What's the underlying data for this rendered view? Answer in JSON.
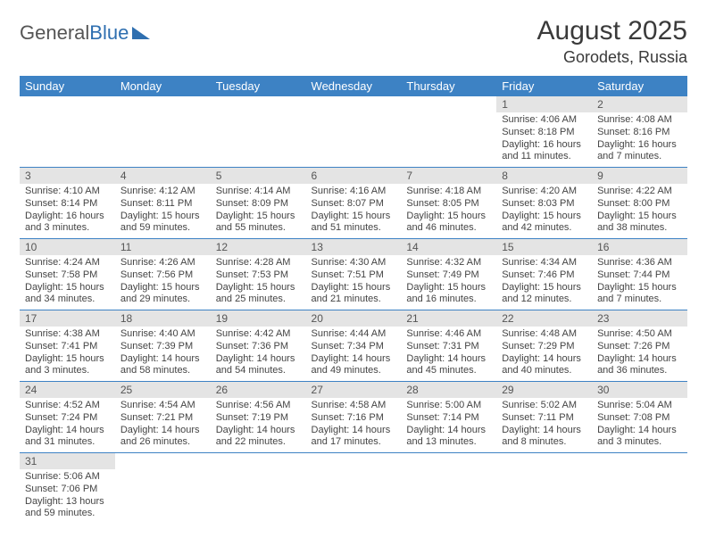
{
  "brand": {
    "part1": "General",
    "part2": "Blue"
  },
  "title": "August 2025",
  "location": "Gorodets, Russia",
  "colors": {
    "header_bg": "#3d82c4",
    "header_fg": "#ffffff",
    "daynum_bg": "#e4e4e4",
    "rule": "#3d82c4",
    "text": "#3a3a3a",
    "brand_blue": "#2f6fb0"
  },
  "weekdays": [
    "Sunday",
    "Monday",
    "Tuesday",
    "Wednesday",
    "Thursday",
    "Friday",
    "Saturday"
  ],
  "weeks": [
    [
      null,
      null,
      null,
      null,
      null,
      {
        "n": "1",
        "sr": "Sunrise: 4:06 AM",
        "ss": "Sunset: 8:18 PM",
        "dl": "Daylight: 16 hours and 11 minutes."
      },
      {
        "n": "2",
        "sr": "Sunrise: 4:08 AM",
        "ss": "Sunset: 8:16 PM",
        "dl": "Daylight: 16 hours and 7 minutes."
      }
    ],
    [
      {
        "n": "3",
        "sr": "Sunrise: 4:10 AM",
        "ss": "Sunset: 8:14 PM",
        "dl": "Daylight: 16 hours and 3 minutes."
      },
      {
        "n": "4",
        "sr": "Sunrise: 4:12 AM",
        "ss": "Sunset: 8:11 PM",
        "dl": "Daylight: 15 hours and 59 minutes."
      },
      {
        "n": "5",
        "sr": "Sunrise: 4:14 AM",
        "ss": "Sunset: 8:09 PM",
        "dl": "Daylight: 15 hours and 55 minutes."
      },
      {
        "n": "6",
        "sr": "Sunrise: 4:16 AM",
        "ss": "Sunset: 8:07 PM",
        "dl": "Daylight: 15 hours and 51 minutes."
      },
      {
        "n": "7",
        "sr": "Sunrise: 4:18 AM",
        "ss": "Sunset: 8:05 PM",
        "dl": "Daylight: 15 hours and 46 minutes."
      },
      {
        "n": "8",
        "sr": "Sunrise: 4:20 AM",
        "ss": "Sunset: 8:03 PM",
        "dl": "Daylight: 15 hours and 42 minutes."
      },
      {
        "n": "9",
        "sr": "Sunrise: 4:22 AM",
        "ss": "Sunset: 8:00 PM",
        "dl": "Daylight: 15 hours and 38 minutes."
      }
    ],
    [
      {
        "n": "10",
        "sr": "Sunrise: 4:24 AM",
        "ss": "Sunset: 7:58 PM",
        "dl": "Daylight: 15 hours and 34 minutes."
      },
      {
        "n": "11",
        "sr": "Sunrise: 4:26 AM",
        "ss": "Sunset: 7:56 PM",
        "dl": "Daylight: 15 hours and 29 minutes."
      },
      {
        "n": "12",
        "sr": "Sunrise: 4:28 AM",
        "ss": "Sunset: 7:53 PM",
        "dl": "Daylight: 15 hours and 25 minutes."
      },
      {
        "n": "13",
        "sr": "Sunrise: 4:30 AM",
        "ss": "Sunset: 7:51 PM",
        "dl": "Daylight: 15 hours and 21 minutes."
      },
      {
        "n": "14",
        "sr": "Sunrise: 4:32 AM",
        "ss": "Sunset: 7:49 PM",
        "dl": "Daylight: 15 hours and 16 minutes."
      },
      {
        "n": "15",
        "sr": "Sunrise: 4:34 AM",
        "ss": "Sunset: 7:46 PM",
        "dl": "Daylight: 15 hours and 12 minutes."
      },
      {
        "n": "16",
        "sr": "Sunrise: 4:36 AM",
        "ss": "Sunset: 7:44 PM",
        "dl": "Daylight: 15 hours and 7 minutes."
      }
    ],
    [
      {
        "n": "17",
        "sr": "Sunrise: 4:38 AM",
        "ss": "Sunset: 7:41 PM",
        "dl": "Daylight: 15 hours and 3 minutes."
      },
      {
        "n": "18",
        "sr": "Sunrise: 4:40 AM",
        "ss": "Sunset: 7:39 PM",
        "dl": "Daylight: 14 hours and 58 minutes."
      },
      {
        "n": "19",
        "sr": "Sunrise: 4:42 AM",
        "ss": "Sunset: 7:36 PM",
        "dl": "Daylight: 14 hours and 54 minutes."
      },
      {
        "n": "20",
        "sr": "Sunrise: 4:44 AM",
        "ss": "Sunset: 7:34 PM",
        "dl": "Daylight: 14 hours and 49 minutes."
      },
      {
        "n": "21",
        "sr": "Sunrise: 4:46 AM",
        "ss": "Sunset: 7:31 PM",
        "dl": "Daylight: 14 hours and 45 minutes."
      },
      {
        "n": "22",
        "sr": "Sunrise: 4:48 AM",
        "ss": "Sunset: 7:29 PM",
        "dl": "Daylight: 14 hours and 40 minutes."
      },
      {
        "n": "23",
        "sr": "Sunrise: 4:50 AM",
        "ss": "Sunset: 7:26 PM",
        "dl": "Daylight: 14 hours and 36 minutes."
      }
    ],
    [
      {
        "n": "24",
        "sr": "Sunrise: 4:52 AM",
        "ss": "Sunset: 7:24 PM",
        "dl": "Daylight: 14 hours and 31 minutes."
      },
      {
        "n": "25",
        "sr": "Sunrise: 4:54 AM",
        "ss": "Sunset: 7:21 PM",
        "dl": "Daylight: 14 hours and 26 minutes."
      },
      {
        "n": "26",
        "sr": "Sunrise: 4:56 AM",
        "ss": "Sunset: 7:19 PM",
        "dl": "Daylight: 14 hours and 22 minutes."
      },
      {
        "n": "27",
        "sr": "Sunrise: 4:58 AM",
        "ss": "Sunset: 7:16 PM",
        "dl": "Daylight: 14 hours and 17 minutes."
      },
      {
        "n": "28",
        "sr": "Sunrise: 5:00 AM",
        "ss": "Sunset: 7:14 PM",
        "dl": "Daylight: 14 hours and 13 minutes."
      },
      {
        "n": "29",
        "sr": "Sunrise: 5:02 AM",
        "ss": "Sunset: 7:11 PM",
        "dl": "Daylight: 14 hours and 8 minutes."
      },
      {
        "n": "30",
        "sr": "Sunrise: 5:04 AM",
        "ss": "Sunset: 7:08 PM",
        "dl": "Daylight: 14 hours and 3 minutes."
      }
    ],
    [
      {
        "n": "31",
        "sr": "Sunrise: 5:06 AM",
        "ss": "Sunset: 7:06 PM",
        "dl": "Daylight: 13 hours and 59 minutes."
      },
      null,
      null,
      null,
      null,
      null,
      null
    ]
  ]
}
